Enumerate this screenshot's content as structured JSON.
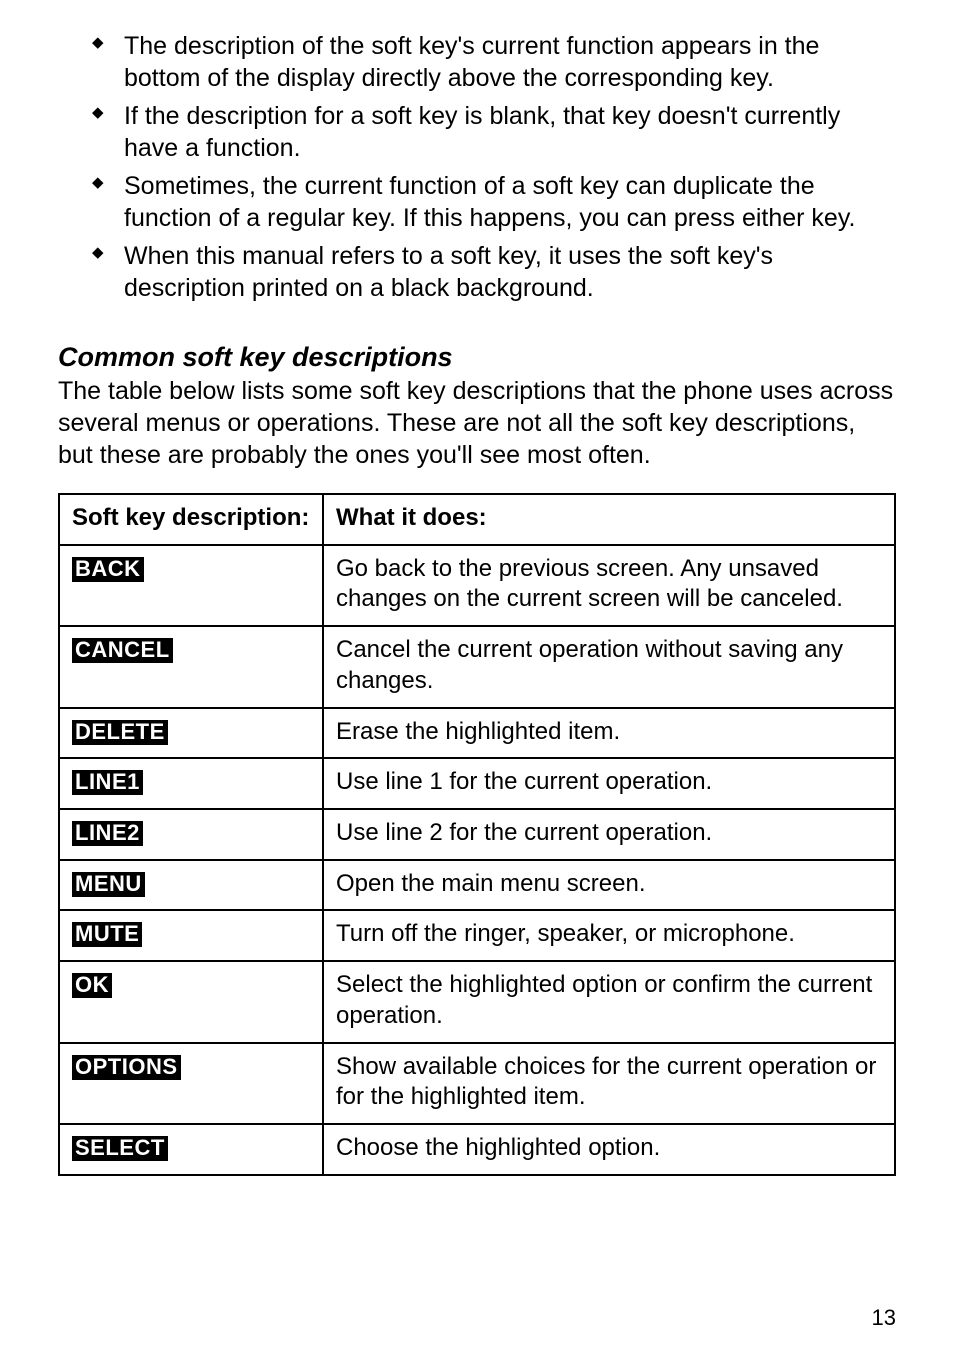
{
  "bullets": [
    "The description of the soft key's current function appears in the bottom of the display directly above the corresponding key.",
    "If the description for a soft key is blank, that key doesn't currently have a function.",
    "Sometimes, the current function of a soft key can duplicate the function of a regular key. If this happens, you can press either key.",
    "When this manual refers to a soft key, it uses the soft key's description printed on a black background."
  ],
  "section_title": "Common soft key descriptions",
  "section_intro": "The table below lists some soft key descriptions that the phone uses across several menus or operations. These are not all the soft key descriptions, but these are probably the ones you'll see most often.",
  "table": {
    "header": {
      "col1": "Soft key description:",
      "col2": "What it does:"
    },
    "rows": [
      {
        "key": "BACK",
        "desc": "Go back to the previous screen. Any unsaved changes on the current screen will be canceled."
      },
      {
        "key": "CANCEL",
        "desc": "Cancel the current operation without saving any changes."
      },
      {
        "key": "DELETE",
        "desc": "Erase the highlighted item."
      },
      {
        "key": "LINE1",
        "desc": "Use line 1 for the current operation."
      },
      {
        "key": "LINE2",
        "desc": "Use line 2 for the current operation."
      },
      {
        "key": "MENU",
        "desc": "Open the main menu screen."
      },
      {
        "key": "MUTE",
        "desc": "Turn off the ringer, speaker, or microphone."
      },
      {
        "key": "OK",
        "desc": "Select the highlighted option or confirm the current operation."
      },
      {
        "key": "OPTIONS",
        "desc": "Show available choices for the current operation or for the highlighted item."
      },
      {
        "key": "SELECT",
        "desc": "Choose the highlighted option."
      }
    ]
  },
  "page_number": "13",
  "colors": {
    "text": "#000000",
    "background": "#ffffff",
    "key_bg": "#000000",
    "key_fg": "#ffffff",
    "border": "#000000"
  },
  "fonts": {
    "body_size_pt": 19,
    "heading_size_pt": 20,
    "keylabel_size_pt": 16
  }
}
